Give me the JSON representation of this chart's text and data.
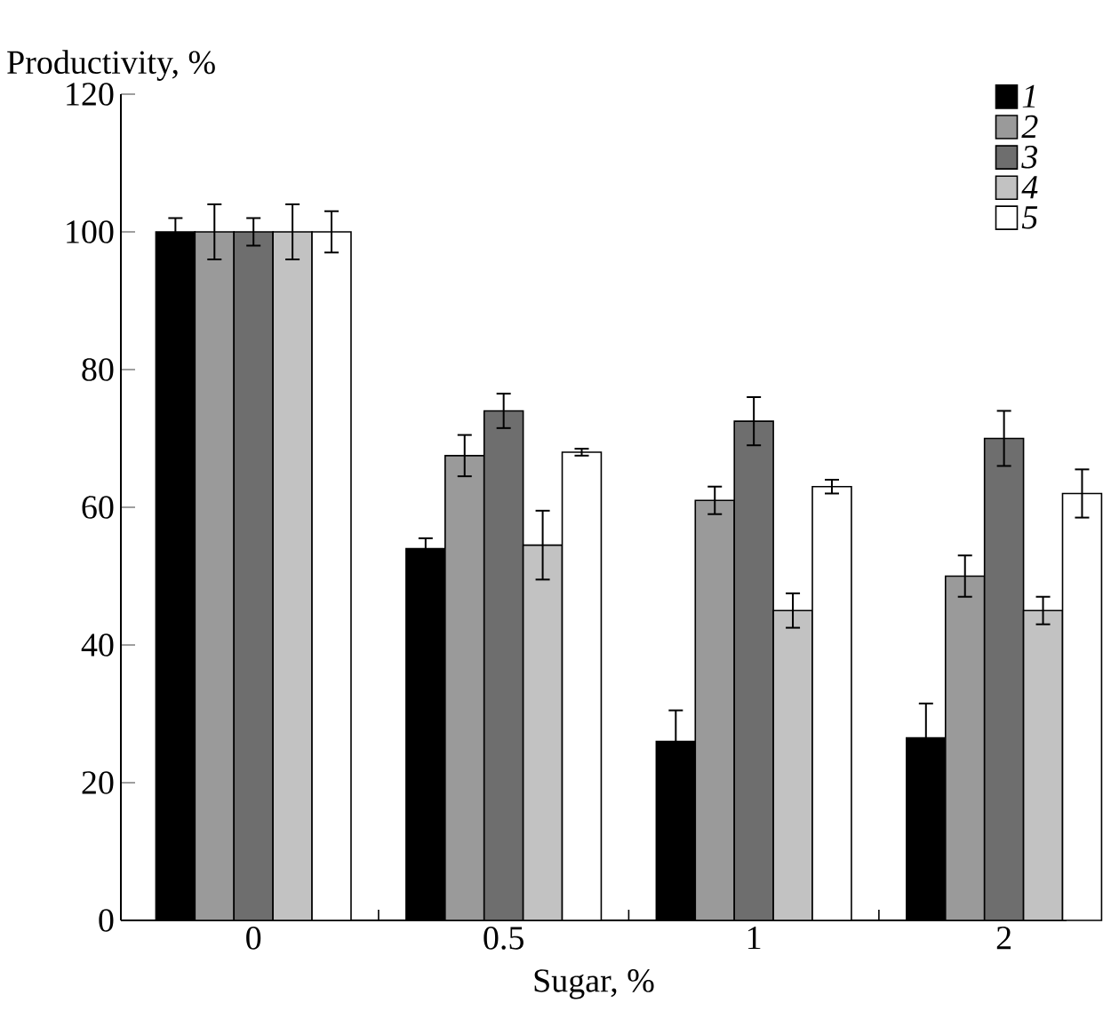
{
  "chart_data": {
    "type": "bar",
    "xlabel": "Sugar, %",
    "ylabel": "Productivity, %",
    "categories": [
      "0",
      "0.5",
      "1",
      "2"
    ],
    "series": [
      {
        "name": "1",
        "color": "#000000",
        "values": [
          100,
          54,
          26,
          26.5
        ],
        "errors": [
          2,
          1.5,
          4.5,
          5
        ]
      },
      {
        "name": "2",
        "color": "#9a9a9a",
        "values": [
          100,
          67.5,
          61,
          50
        ],
        "errors": [
          4,
          3,
          2,
          3
        ]
      },
      {
        "name": "3",
        "color": "#6e6e6e",
        "values": [
          100,
          74,
          72.5,
          70
        ],
        "errors": [
          2,
          2.5,
          3.5,
          4
        ]
      },
      {
        "name": "4",
        "color": "#c2c2c2",
        "values": [
          100,
          54.5,
          45,
          45
        ],
        "errors": [
          4,
          5,
          2.5,
          2
        ]
      },
      {
        "name": "5",
        "color": "#ffffff",
        "values": [
          100,
          68,
          63,
          62
        ],
        "errors": [
          3,
          0.5,
          1,
          3.5
        ]
      }
    ],
    "ylim": [
      0,
      120
    ],
    "yticks": [
      0,
      20,
      40,
      60,
      80,
      100,
      120
    ],
    "legend": "top right",
    "grid": false
  }
}
